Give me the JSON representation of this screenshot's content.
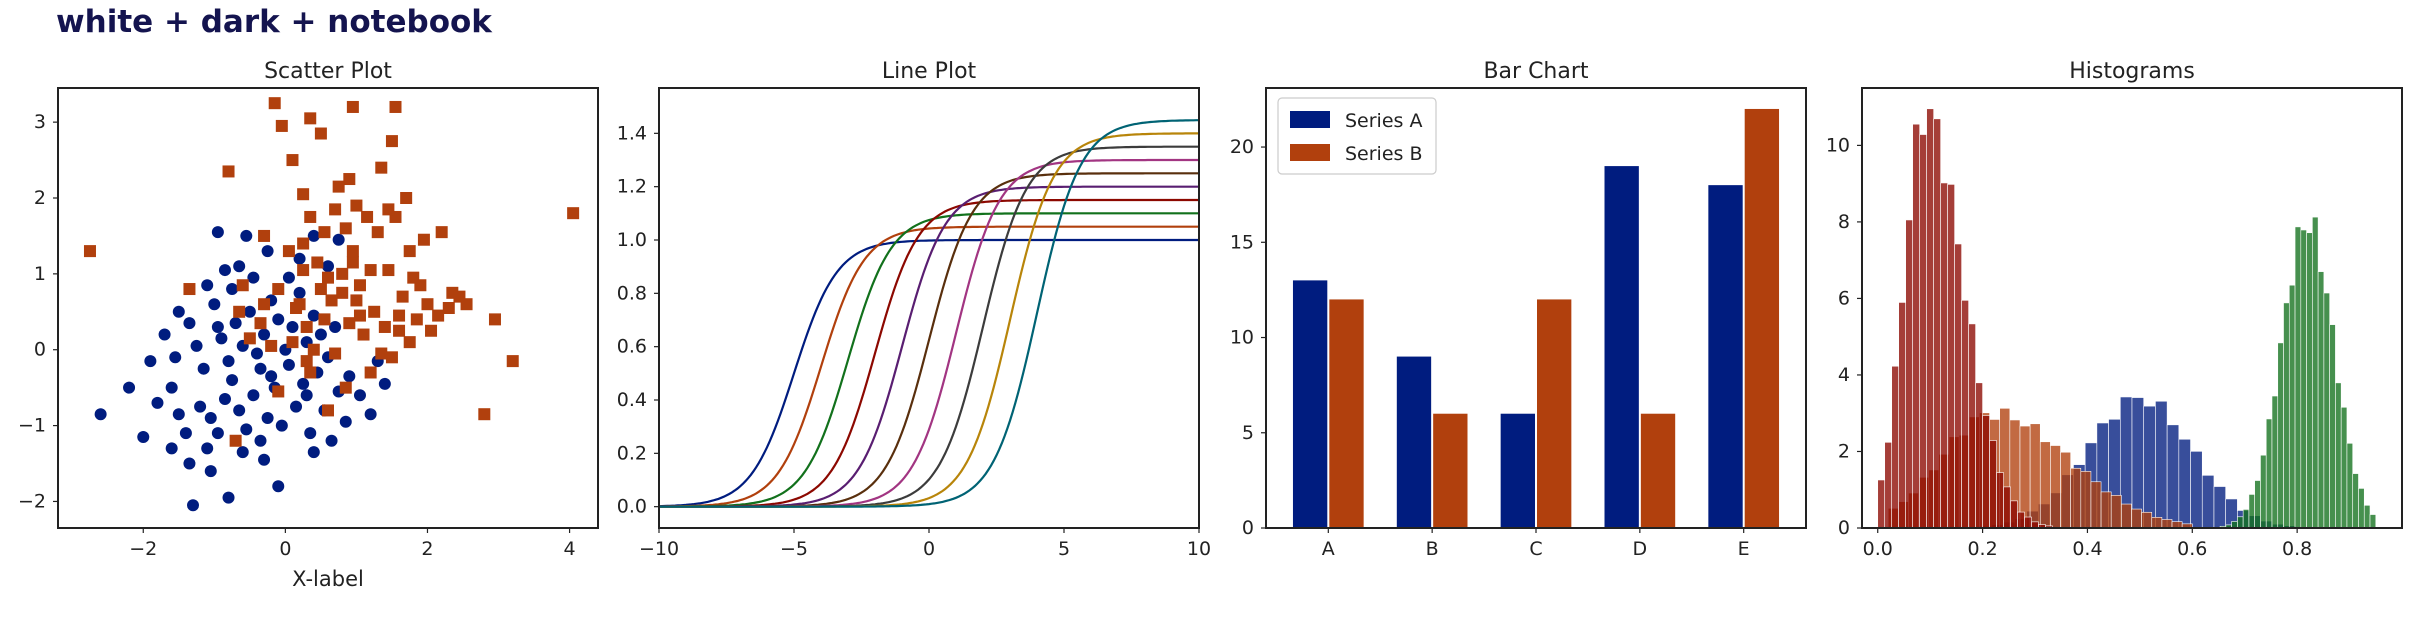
{
  "figure_title": "white + dark + notebook",
  "colors": {
    "navy": "#001c7f",
    "rust": "#b1400d",
    "green": "#12711c",
    "maroon": "#8c0800",
    "purple": "#591e71",
    "brown": "#592f0d",
    "magenta": "#a23582",
    "darkbrown": "#3c3c3c",
    "ochre": "#b8850a",
    "teal": "#006374",
    "hist_blue": "#001c7f",
    "hist_rust": "#b1400d",
    "hist_green": "#12711c",
    "hist_maroon": "#8c0800"
  },
  "chart_data": [
    {
      "type": "scatter",
      "title": "Scatter Plot",
      "xlabel": "X-label",
      "ylabel": "",
      "xlim": [
        -3.2,
        4.4
      ],
      "ylim": [
        -2.35,
        3.45
      ],
      "xticks": [
        -2,
        0,
        2,
        4
      ],
      "yticks": [
        -2,
        -1,
        0,
        1,
        2,
        3
      ],
      "grid": false,
      "series": [
        {
          "marker": "circle",
          "points": [
            [
              -2.6,
              -0.85
            ],
            [
              -2.0,
              -1.15
            ],
            [
              -1.3,
              -2.05
            ],
            [
              -0.8,
              -1.95
            ],
            [
              -0.1,
              -1.8
            ],
            [
              -1.05,
              -1.6
            ],
            [
              -1.35,
              -1.5
            ],
            [
              -1.6,
              -1.3
            ],
            [
              -1.1,
              -1.3
            ],
            [
              -0.6,
              -1.35
            ],
            [
              -0.3,
              -1.45
            ],
            [
              0.4,
              -1.35
            ],
            [
              -1.8,
              -0.7
            ],
            [
              -1.6,
              -0.5
            ],
            [
              -1.5,
              -0.85
            ],
            [
              -1.4,
              -1.1
            ],
            [
              -1.2,
              -0.75
            ],
            [
              -1.05,
              -0.9
            ],
            [
              -0.95,
              -1.1
            ],
            [
              -0.85,
              -0.65
            ],
            [
              -0.75,
              -0.4
            ],
            [
              -0.65,
              -0.8
            ],
            [
              -0.55,
              -1.05
            ],
            [
              -0.45,
              -0.6
            ],
            [
              -0.35,
              -0.25
            ],
            [
              -0.25,
              -0.9
            ],
            [
              -0.15,
              -0.5
            ],
            [
              -0.05,
              -1.0
            ],
            [
              0.05,
              -0.2
            ],
            [
              0.15,
              -0.75
            ],
            [
              0.25,
              -0.45
            ],
            [
              0.35,
              -1.1
            ],
            [
              0.45,
              -0.3
            ],
            [
              0.55,
              -0.8
            ],
            [
              0.65,
              -1.2
            ],
            [
              0.75,
              -0.55
            ],
            [
              0.85,
              -0.95
            ],
            [
              1.05,
              -0.6
            ],
            [
              1.2,
              -0.85
            ],
            [
              1.4,
              -0.45
            ],
            [
              -1.9,
              -0.15
            ],
            [
              -1.7,
              0.2
            ],
            [
              -1.55,
              -0.1
            ],
            [
              -1.35,
              0.35
            ],
            [
              -1.25,
              0.05
            ],
            [
              -1.15,
              -0.25
            ],
            [
              -1.0,
              0.6
            ],
            [
              -0.9,
              0.15
            ],
            [
              -0.8,
              -0.15
            ],
            [
              -0.7,
              0.35
            ],
            [
              -0.6,
              0.05
            ],
            [
              -0.5,
              0.5
            ],
            [
              -0.4,
              -0.05
            ],
            [
              -0.3,
              0.2
            ],
            [
              -0.2,
              0.65
            ],
            [
              -0.1,
              0.4
            ],
            [
              0.0,
              0.0
            ],
            [
              0.1,
              0.3
            ],
            [
              0.2,
              0.75
            ],
            [
              0.3,
              0.1
            ],
            [
              0.4,
              0.45
            ],
            [
              0.5,
              0.2
            ],
            [
              0.6,
              -0.1
            ],
            [
              0.7,
              0.3
            ],
            [
              -0.85,
              1.05
            ],
            [
              -0.75,
              0.8
            ],
            [
              -0.65,
              1.1
            ],
            [
              -0.55,
              1.5
            ],
            [
              0.2,
              1.2
            ],
            [
              0.4,
              1.5
            ],
            [
              0.6,
              1.1
            ],
            [
              0.75,
              1.45
            ],
            [
              -0.95,
              1.55
            ],
            [
              -0.45,
              0.95
            ],
            [
              -0.25,
              1.3
            ],
            [
              0.05,
              0.95
            ],
            [
              -1.5,
              0.5
            ],
            [
              -1.1,
              0.85
            ],
            [
              -0.35,
              -1.2
            ],
            [
              0.9,
              -0.35
            ],
            [
              1.3,
              -0.15
            ],
            [
              -2.2,
              -0.5
            ],
            [
              -0.95,
              0.3
            ],
            [
              0.3,
              -0.6
            ],
            [
              -0.2,
              -0.35
            ]
          ]
        },
        {
          "marker": "square",
          "points": [
            [
              -2.75,
              1.3
            ],
            [
              -0.15,
              3.25
            ],
            [
              0.35,
              3.05
            ],
            [
              0.95,
              3.2
            ],
            [
              1.55,
              3.2
            ],
            [
              -0.05,
              2.95
            ],
            [
              0.1,
              2.5
            ],
            [
              0.5,
              2.85
            ],
            [
              1.5,
              2.75
            ],
            [
              -0.8,
              2.35
            ],
            [
              0.25,
              2.05
            ],
            [
              0.9,
              2.25
            ],
            [
              1.35,
              2.4
            ],
            [
              1.7,
              2.0
            ],
            [
              1.95,
              1.45
            ],
            [
              2.2,
              1.55
            ],
            [
              0.75,
              2.15
            ],
            [
              1.0,
              1.9
            ],
            [
              0.35,
              1.75
            ],
            [
              0.55,
              1.55
            ],
            [
              0.7,
              1.85
            ],
            [
              0.85,
              1.6
            ],
            [
              1.15,
              1.75
            ],
            [
              1.3,
              1.55
            ],
            [
              1.55,
              1.75
            ],
            [
              1.75,
              1.3
            ],
            [
              -1.35,
              0.8
            ],
            [
              -0.6,
              0.85
            ],
            [
              -0.3,
              1.5
            ],
            [
              -0.1,
              0.8
            ],
            [
              0.05,
              1.3
            ],
            [
              0.25,
              1.05
            ],
            [
              0.45,
              1.15
            ],
            [
              0.6,
              0.95
            ],
            [
              0.8,
              0.75
            ],
            [
              0.95,
              1.15
            ],
            [
              1.05,
              0.85
            ],
            [
              1.2,
              1.05
            ],
            [
              1.45,
              1.05
            ],
            [
              1.65,
              0.7
            ],
            [
              1.9,
              0.85
            ],
            [
              2.35,
              0.75
            ],
            [
              2.45,
              0.7
            ],
            [
              2.55,
              0.6
            ],
            [
              -0.5,
              0.15
            ],
            [
              -0.35,
              0.35
            ],
            [
              -0.2,
              0.05
            ],
            [
              0.1,
              0.1
            ],
            [
              0.3,
              0.3
            ],
            [
              0.4,
              0.0
            ],
            [
              0.55,
              0.4
            ],
            [
              0.7,
              -0.05
            ],
            [
              0.9,
              0.35
            ],
            [
              1.1,
              0.2
            ],
            [
              1.25,
              0.5
            ],
            [
              1.4,
              0.3
            ],
            [
              1.6,
              0.45
            ],
            [
              1.75,
              0.1
            ],
            [
              1.85,
              0.4
            ],
            [
              2.05,
              0.25
            ],
            [
              2.15,
              0.45
            ],
            [
              2.3,
              0.55
            ],
            [
              2.95,
              0.4
            ],
            [
              3.2,
              -0.15
            ],
            [
              4.05,
              1.8
            ],
            [
              -0.1,
              -0.55
            ],
            [
              0.35,
              -0.3
            ],
            [
              0.6,
              -0.8
            ],
            [
              0.85,
              -0.5
            ],
            [
              1.2,
              -0.3
            ],
            [
              1.5,
              -0.1
            ],
            [
              2.8,
              -0.85
            ],
            [
              -0.7,
              -1.2
            ],
            [
              0.2,
              0.6
            ],
            [
              1.35,
              -0.05
            ],
            [
              1.0,
              0.65
            ],
            [
              0.15,
              0.55
            ],
            [
              0.65,
              0.65
            ],
            [
              1.8,
              0.95
            ],
            [
              -0.3,
              0.6
            ],
            [
              0.5,
              0.8
            ],
            [
              1.6,
              0.25
            ],
            [
              2.0,
              0.6
            ],
            [
              1.05,
              0.45
            ],
            [
              0.3,
              -0.15
            ],
            [
              -0.65,
              0.5
            ],
            [
              0.95,
              1.3
            ],
            [
              0.25,
              1.4
            ],
            [
              1.45,
              1.85
            ],
            [
              0.8,
              1.0
            ]
          ]
        }
      ]
    },
    {
      "type": "line",
      "title": "Line Plot",
      "xlabel": "",
      "ylabel": "",
      "xlim": [
        -10,
        10
      ],
      "ylim": [
        -0.08,
        1.57
      ],
      "xticks": [
        -10,
        -5,
        0,
        5,
        10
      ],
      "yticks": [
        0.0,
        0.2,
        0.4,
        0.6,
        0.8,
        1.0,
        1.2,
        1.4
      ],
      "yticklabels": [
        "0.0",
        "0.2",
        "0.4",
        "0.6",
        "0.8",
        "1.0",
        "1.2",
        "1.4"
      ],
      "grid": false,
      "curves": "y = (1 + 0.05*i) / (1 + exp(-(x - (i - 5))*1.25)) for i = 0..9",
      "series": [
        {
          "index": 0,
          "amplitude": 1.0,
          "center": -5
        },
        {
          "index": 1,
          "amplitude": 1.05,
          "center": -4
        },
        {
          "index": 2,
          "amplitude": 1.1,
          "center": -3
        },
        {
          "index": 3,
          "amplitude": 1.15,
          "center": -2
        },
        {
          "index": 4,
          "amplitude": 1.2,
          "center": -1
        },
        {
          "index": 5,
          "amplitude": 1.25,
          "center": 0
        },
        {
          "index": 6,
          "amplitude": 1.3,
          "center": 1
        },
        {
          "index": 7,
          "amplitude": 1.35,
          "center": 2
        },
        {
          "index": 8,
          "amplitude": 1.4,
          "center": 3
        },
        {
          "index": 9,
          "amplitude": 1.45,
          "center": 4
        }
      ]
    },
    {
      "type": "bar",
      "title": "Bar Chart",
      "xlabel": "",
      "ylabel": "",
      "categories": [
        "A",
        "B",
        "C",
        "D",
        "E"
      ],
      "ylim": [
        0,
        23.1
      ],
      "yticks": [
        0,
        5,
        10,
        15,
        20
      ],
      "legend": "top-left",
      "grid": false,
      "series": [
        {
          "name": "Series A",
          "values": [
            13,
            9,
            6,
            19,
            18
          ]
        },
        {
          "name": "Series B",
          "values": [
            12,
            6,
            12,
            6,
            22
          ]
        }
      ]
    },
    {
      "type": "histogram",
      "title": "Histograms",
      "xlabel": "",
      "ylabel": "",
      "xlim": [
        -0.03,
        1.0
      ],
      "ylim": [
        0,
        11.5
      ],
      "xticks": [
        0.0,
        0.2,
        0.4,
        0.6,
        0.8
      ],
      "xticklabels": [
        "0.0",
        "0.2",
        "0.4",
        "0.6",
        "0.8"
      ],
      "yticks": [
        0,
        2,
        4,
        6,
        8,
        10
      ],
      "grid": false,
      "series": [
        {
          "label": "blue",
          "mean": 0.5,
          "std": 0.1,
          "peak": 3.4,
          "range": [
            0.15,
            0.82
          ]
        },
        {
          "label": "rust",
          "mean": 0.22,
          "std": 0.1,
          "peak": 3.0,
          "range": [
            0.02,
            0.6
          ],
          "skew": 1.0
        },
        {
          "label": "green",
          "mean": 0.82,
          "std": 0.05,
          "peak": 8.0,
          "range": [
            0.62,
            0.95
          ]
        },
        {
          "label": "maroon",
          "mean": 0.09,
          "std": 0.04,
          "peak": 10.9,
          "range": [
            0.0,
            0.4
          ],
          "skew": 1.8
        }
      ]
    }
  ]
}
